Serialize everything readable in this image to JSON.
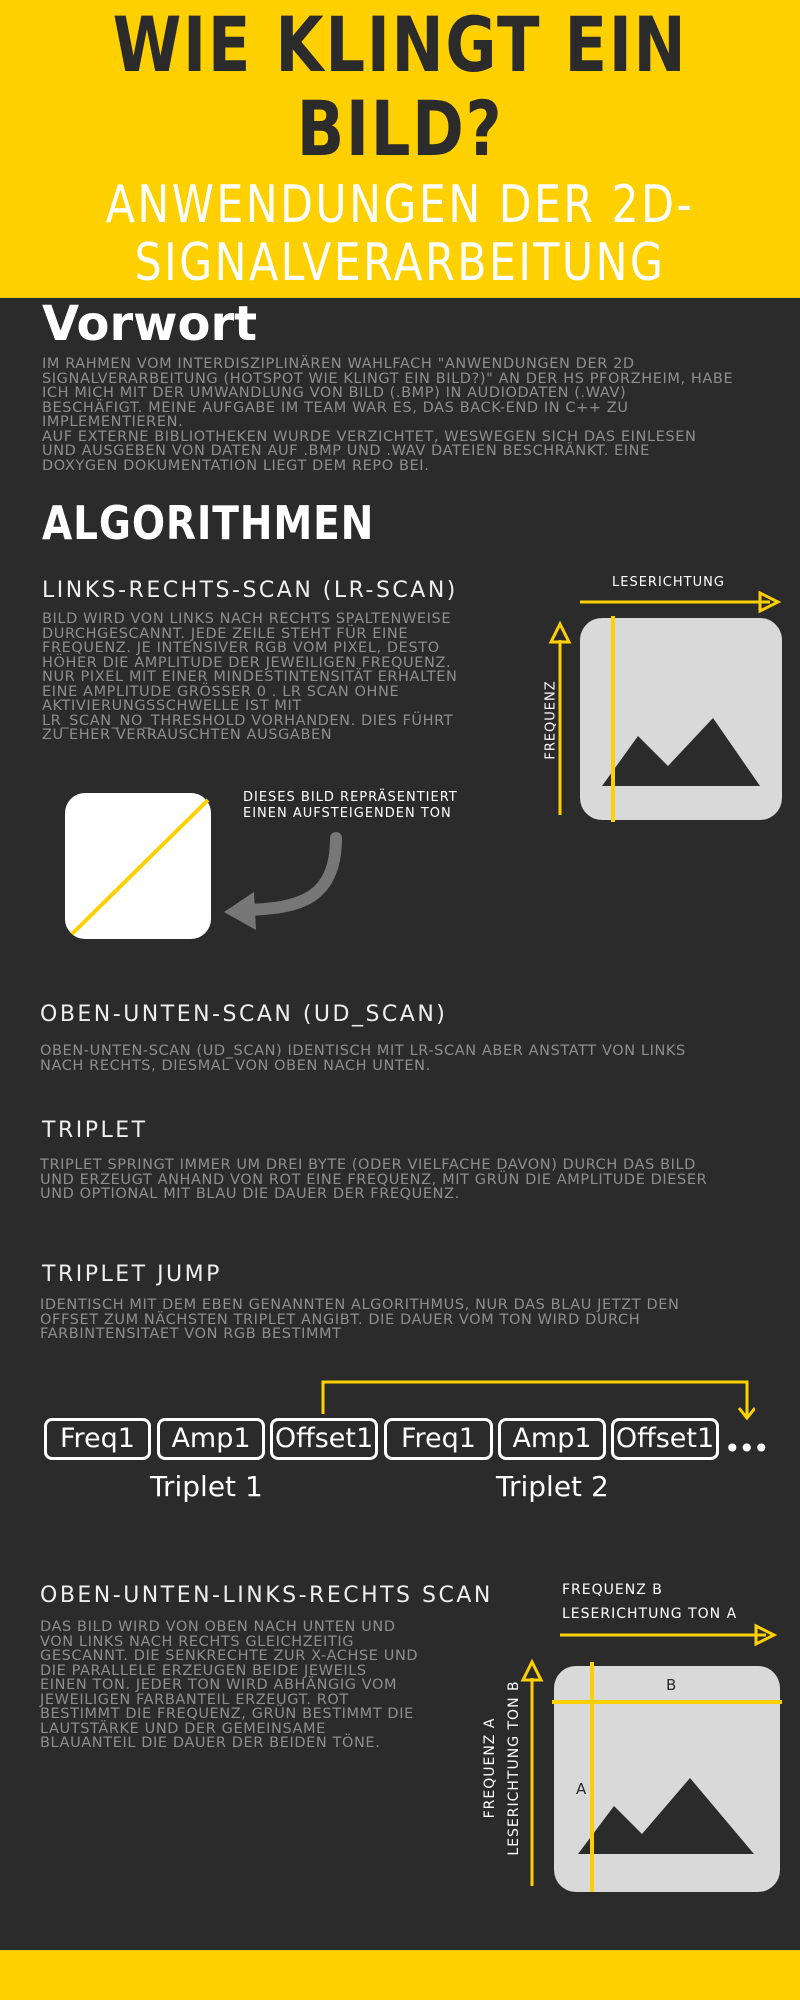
{
  "header": {
    "title_line1": "WIE KLINGT EIN",
    "title_line2": "BILD?",
    "subtitle_line1": "ANWENDUNGEN DER 2D-",
    "subtitle_line2": "SIGNALVERARBEITUNG"
  },
  "vorwort": {
    "heading": "Vorwort",
    "text": "IM RAHMEN VOM INTERDISZIPLINÄREN WAHLFACH \"ANWENDUNGEN DER 2D\nSIGNALVERARBEITUNG (HOTSPOT WIE KLINGT EIN BILD?)\" AN DER HS PFORZHEIM, HABE\nICH MICH MIT DER UMWANDLUNG VON BILD (.BMP) IN AUDIODATEN (.WAV)\nBESCHÄFIGT. MEINE AUFGABE IM TEAM WAR ES, DAS BACK-END IN C++ ZU\nIMPLEMENTIEREN.\nAUF EXTERNE BIBLIOTHEKEN WURDE VERZICHTET, WESWEGEN SICH DAS EINLESEN\nUND AUSGEBEN VON DATEN AUF .BMP UND .WAV DATEIEN BESCHRÄNKT. EINE\nDOXYGEN DOKUMENTATION LIEGT DEM REPO BEI."
  },
  "algorithmen": {
    "heading": "ALGORITHMEN"
  },
  "lr_scan": {
    "heading": "LINKS-RECHTS-SCAN (LR-SCAN)",
    "text": "BILD WIRD VON LINKS NACH RECHTS SPALTENWEISE\nDURCHGESCANNT. JEDE ZEILE STEHT FÜR EINE\nFREQUENZ. JE INTENSIVER RGB VOM PIXEL, DESTO\nHÖHER DIE AMPLITUDE DER JEWEILIGEN FREQUENZ.\nNUR PIXEL MIT EINER MINDESTINTENSITÄT ERHALTEN\nEINE AMPLITUDE GRÖSSER 0 . LR SCAN OHNE\nAKTIVIERUNGSSCHWELLE IST MIT\nLR_SCAN_NO_THRESHOLD VORHANDEN. DIES FÜHRT\nZU  EHER VERRAUSCHTEN AUSGABEN",
    "diagram_top_label": "LESERICHTUNG",
    "diagram_side_label": "FREQUENZ",
    "example_caption": "DIESES BILD REPRÄSENTIERT\nEINEN AUFSTEIGENDEN TON"
  },
  "ud_scan": {
    "heading": "OBEN-UNTEN-SCAN (UD_SCAN)",
    "text": "OBEN-UNTEN-SCAN (UD_SCAN) IDENTISCH MIT LR-SCAN ABER ANSTATT VON LINKS\nNACH RECHTS, DIESMAL VON OBEN NACH UNTEN."
  },
  "triplet": {
    "heading": "TRIPLET",
    "text": "TRIPLET SPRINGT IMMER UM DREI BYTE (ODER VIELFACHE DAVON) DURCH DAS BILD\nUND ERZEUGT ANHAND VON ROT EINE FREQUENZ, MIT GRÜN DIE AMPLITUDE DIESER\nUND OPTIONAL MIT BLAU DIE DAUER DER FREQUENZ."
  },
  "triplet_jump": {
    "heading": "TRIPLET JUMP",
    "text": "IDENTISCH MIT DEM EBEN GENANNTEN ALGORITHMUS, NUR DAS BLAU JETZT DEN\nOFFSET ZUM NÄCHSTEN TRIPLET ANGIBT. DIE DAUER VOM TON WIRD DURCH\nFARBINTENSITAET VON RGB BESTIMMT",
    "boxes": [
      "Freq1",
      "Amp1",
      "Offset1",
      "Freq1",
      "Amp1",
      "Offset1"
    ],
    "ellipsis": "•••",
    "group1_label": "Triplet 1",
    "group2_label": "Triplet 2"
  },
  "udlr_scan": {
    "heading": "OBEN-UNTEN-LINKS-RECHTS SCAN",
    "text": "DAS BILD WIRD VON OBEN NACH UNTEN UND\nVON LINKS NACH RECHTS GLEICHZEITIG\nGESCANNT. DIE SENKRECHTE ZUR X-ACHSE UND\nDIE PARALLELE ERZEUGEN BEIDE JEWEILS\nEINEN TON. JEDER TON WIRD ABHÄNGIG VOM\nJEWEILIGEN FARBANTEIL ERZEUGT. ROT\nBESTIMMT DIE FREQUENZ, GRÜN BESTIMMT DIE\nLAUTSTÄRKE UND DER GEMEINSAME\nBLAUANTEIL DIE DAUER DER BEIDEN TÖNE.",
    "top_label_line1": "FREQUENZ B",
    "top_label_line2": "LESERICHTUNG TON A",
    "side_label_line1": "FREQUENZ A",
    "side_label_line2": "LESERICHTUNG TON B",
    "marker_b": "B",
    "marker_a": "A"
  },
  "colors": {
    "accent": "#ffd000",
    "background": "#2b2b2b",
    "body_text": "#8e8e8e",
    "image_placeholder": "#d9d9d9"
  }
}
